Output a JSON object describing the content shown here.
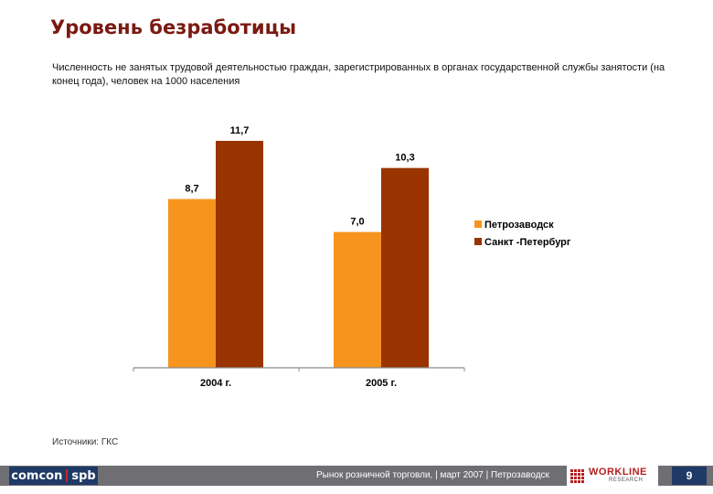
{
  "header": {
    "title": "Уровень безработицы",
    "subtitle": "Численность не занятых трудовой деятельностью граждан, зарегистрированных в органах государственной службы занятости (на конец года), человек на 1000 населения"
  },
  "chart_data": {
    "type": "bar",
    "categories": [
      "2004 г.",
      "2005 г."
    ],
    "series": [
      {
        "name": "Петрозаводск",
        "values": [
          8.7,
          7.0
        ],
        "labels": [
          "8,7",
          "7,0"
        ],
        "color": "#f7941d"
      },
      {
        "name": "Санкт -Петербург",
        "values": [
          11.7,
          10.3
        ],
        "labels": [
          "11,7",
          "10,3"
        ],
        "color": "#993300"
      }
    ],
    "ylim": [
      0,
      13
    ],
    "grid": false,
    "legend": "right"
  },
  "source": "Источники: ГКС",
  "footer": {
    "logo_left": "comcon",
    "logo_right": "spb",
    "text": "Рынок розничной торговли, | март 2007 | Петрозаводск",
    "brand_main": "WORKLINE",
    "brand_sub": "RESEARCH",
    "page": "9"
  }
}
